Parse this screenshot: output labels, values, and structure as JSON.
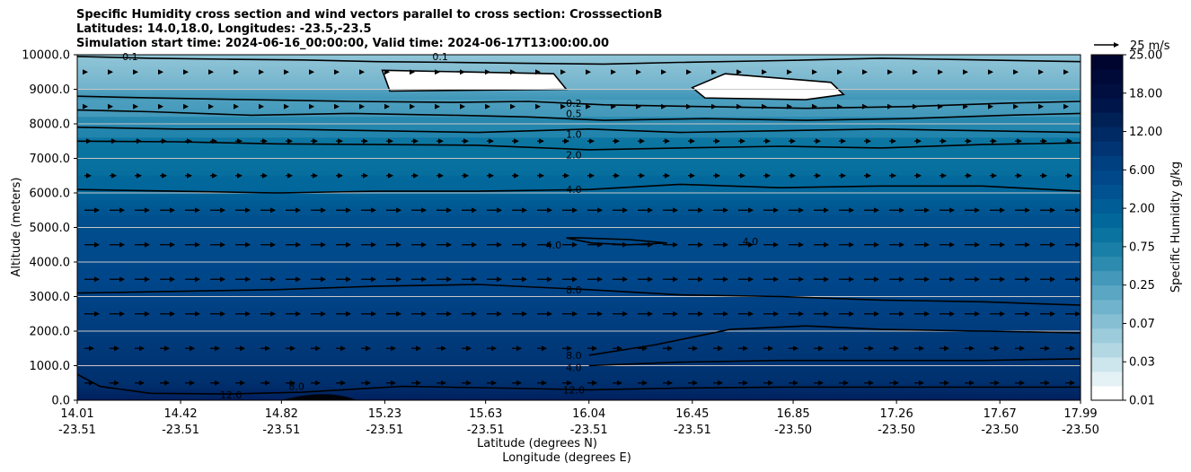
{
  "chart_data": {
    "type": "contourf",
    "title_lines": [
      "Specific Humidity cross section and wind vectors parallel to cross section: CrosssectionB",
      "Latitudes: 14.0,18.0, Longitudes: -23.5,-23.5",
      "Simulation start time: 2024-06-16_00:00:00, Valid time: 2024-06-17T13:00:00.00"
    ],
    "ylabel": "Altitude (meters)",
    "xlabel_lat": "Latitude (degrees N)",
    "xlabel_lon": "Longitude (degrees E)",
    "ylim": [
      0,
      10000
    ],
    "yticks": [
      "0.0",
      "1000.0",
      "2000.0",
      "3000.0",
      "4000.0",
      "5000.0",
      "6000.0",
      "7000.0",
      "8000.0",
      "9000.0",
      "10000.0"
    ],
    "x_lat": [
      "14.01",
      "14.42",
      "14.82",
      "15.23",
      "15.63",
      "16.04",
      "16.45",
      "16.85",
      "17.26",
      "17.67",
      "17.99"
    ],
    "x_lon": [
      "-23.51",
      "-23.51",
      "-23.51",
      "-23.51",
      "-23.51",
      "-23.51",
      "-23.51",
      "-23.50",
      "-23.50",
      "-23.50",
      "-23.50"
    ],
    "colorbar": {
      "label": "Specific Humidity g/kg",
      "ticks": [
        "0.01",
        "0.03",
        "0.07",
        "0.25",
        "0.75",
        "2.00",
        "6.00",
        "12.00",
        "18.00",
        "25.00"
      ],
      "colors": [
        "#ffffff",
        "#e4f1f5",
        "#cde5ec",
        "#b3d8e4",
        "#9ccbdc",
        "#86bfd4",
        "#70b3cc",
        "#5aa6c3",
        "#4499ba",
        "#2d8bb0",
        "#1a7fa6",
        "#0a739f",
        "#02689b",
        "#015d95",
        "#005390",
        "#00488a",
        "#003f80",
        "#003472",
        "#002a64",
        "#002156",
        "#00164a",
        "#000f40",
        "#000a38",
        "#000530"
      ]
    },
    "vector_key": "25 m/s",
    "contour_labels": [
      "0.1",
      "0.1",
      "0.2",
      "0.5",
      "1.0",
      "2.0",
      "4.0",
      "4.0",
      "4.0",
      "8.0",
      "8.0",
      "4.0",
      "12.0",
      "12.0",
      "8.0"
    ],
    "contours": [
      {
        "level": "0.1",
        "points": [
          [
            14.01,
            9950
          ],
          [
            14.3,
            9900
          ],
          [
            14.6,
            9870
          ],
          [
            14.9,
            9850
          ],
          [
            15.2,
            9800
          ],
          [
            15.5,
            9780
          ],
          [
            15.8,
            9750
          ],
          [
            16.1,
            9730
          ],
          [
            16.4,
            9780
          ],
          [
            16.8,
            9830
          ],
          [
            17.2,
            9900
          ],
          [
            17.6,
            9850
          ],
          [
            17.99,
            9800
          ]
        ]
      },
      {
        "level": "0.2",
        "points": [
          [
            14.01,
            8800
          ],
          [
            14.3,
            8750
          ],
          [
            14.7,
            8700
          ],
          [
            15.1,
            8650
          ],
          [
            15.5,
            8620
          ],
          [
            15.8,
            8650
          ],
          [
            16.1,
            8550
          ],
          [
            16.5,
            8500
          ],
          [
            16.9,
            8450
          ],
          [
            17.3,
            8500
          ],
          [
            17.7,
            8600
          ],
          [
            17.99,
            8650
          ]
        ]
      },
      {
        "level": "0.5",
        "points": [
          [
            14.01,
            8400
          ],
          [
            14.3,
            8350
          ],
          [
            14.7,
            8250
          ],
          [
            15.1,
            8300
          ],
          [
            15.5,
            8250
          ],
          [
            15.8,
            8200
          ],
          [
            16.1,
            8100
          ],
          [
            16.5,
            8150
          ],
          [
            16.9,
            8100
          ],
          [
            17.3,
            8150
          ],
          [
            17.7,
            8250
          ],
          [
            17.99,
            8300
          ]
        ]
      },
      {
        "level": "1.0",
        "points": [
          [
            14.01,
            7900
          ],
          [
            14.4,
            7850
          ],
          [
            14.8,
            7850
          ],
          [
            15.2,
            7800
          ],
          [
            15.6,
            7750
          ],
          [
            16.04,
            7850
          ],
          [
            16.4,
            7750
          ],
          [
            16.8,
            7800
          ],
          [
            17.2,
            7850
          ],
          [
            17.6,
            7800
          ],
          [
            17.99,
            7750
          ]
        ]
      },
      {
        "level": "2.0",
        "points": [
          [
            14.01,
            7500
          ],
          [
            14.4,
            7480
          ],
          [
            14.8,
            7420
          ],
          [
            15.2,
            7400
          ],
          [
            15.6,
            7380
          ],
          [
            16.04,
            7250
          ],
          [
            16.4,
            7300
          ],
          [
            16.8,
            7350
          ],
          [
            17.2,
            7300
          ],
          [
            17.6,
            7400
          ],
          [
            17.99,
            7450
          ]
        ]
      },
      {
        "level": "4.0",
        "points": [
          [
            14.01,
            6100
          ],
          [
            14.4,
            6050
          ],
          [
            14.8,
            6000
          ],
          [
            15.2,
            6050
          ],
          [
            15.6,
            6050
          ],
          [
            16.04,
            6100
          ],
          [
            16.4,
            6250
          ],
          [
            16.8,
            6150
          ],
          [
            17.2,
            6200
          ],
          [
            17.6,
            6200
          ],
          [
            17.99,
            6050
          ]
        ]
      },
      {
        "level": "4.0",
        "points": [
          [
            15.95,
            4700
          ],
          [
            16.05,
            4550
          ],
          [
            16.2,
            4500
          ],
          [
            16.35,
            4550
          ],
          [
            16.2,
            4650
          ],
          [
            16.0,
            4700
          ],
          [
            15.95,
            4700
          ]
        ]
      },
      {
        "level": "8.0",
        "points": [
          [
            14.01,
            3100
          ],
          [
            14.4,
            3150
          ],
          [
            14.8,
            3200
          ],
          [
            15.2,
            3300
          ],
          [
            15.6,
            3350
          ],
          [
            16.04,
            3200
          ],
          [
            16.4,
            3050
          ],
          [
            16.8,
            3000
          ],
          [
            17.2,
            2900
          ],
          [
            17.6,
            2850
          ],
          [
            17.99,
            2750
          ]
        ]
      },
      {
        "level": "8.0",
        "points": [
          [
            16.04,
            1300
          ],
          [
            16.3,
            1600
          ],
          [
            16.6,
            2050
          ],
          [
            16.9,
            2150
          ],
          [
            17.2,
            2050
          ],
          [
            17.6,
            2000
          ],
          [
            17.99,
            1950
          ]
        ]
      },
      {
        "level": "4.0",
        "points": [
          [
            16.04,
            1000
          ],
          [
            16.4,
            1100
          ],
          [
            16.8,
            1150
          ],
          [
            17.2,
            1150
          ],
          [
            17.6,
            1150
          ],
          [
            17.99,
            1200
          ]
        ]
      },
      {
        "level": "12.0",
        "points": [
          [
            14.01,
            750
          ],
          [
            14.1,
            400
          ],
          [
            14.3,
            200
          ],
          [
            14.6,
            180
          ],
          [
            14.9,
            230
          ],
          [
            15.3,
            400
          ],
          [
            15.7,
            350
          ],
          [
            16.04,
            300
          ],
          [
            16.4,
            350
          ],
          [
            16.8,
            380
          ],
          [
            17.2,
            380
          ],
          [
            17.6,
            380
          ],
          [
            17.99,
            380
          ]
        ]
      }
    ]
  }
}
